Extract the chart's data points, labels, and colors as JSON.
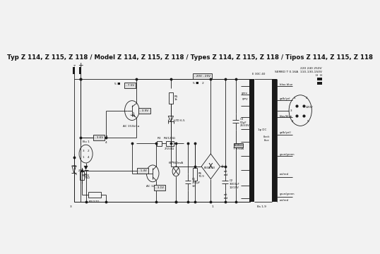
{
  "title_line": "Typ Z 114, Z 115, Z 118 / Model Z 114, Z 115, Z 118 / Types Z 114, Z 115, Z 118 / Tipos Z 114, Z 115, Z 118",
  "bg_color": "#f2f2f2",
  "line_color": "#1a1a1a",
  "text_color": "#111111",
  "title_fontsize": 6.2,
  "body_fontsize": 4.0,
  "small_fontsize": 3.2,
  "top_right_text1": "220 240 250V",
  "top_right_text2": "SEMKO T 0.16A  110-130-150V",
  "top_right_text3": "H  H",
  "voltage_box1": "- 20V - 25V",
  "voltage_box2": "- 7.5V",
  "voltage_box3": "- 3.6V",
  "voltage_box4": "- 1.4V",
  "voltage_box5": "- 3.6V",
  "label_r5": "R5\n1k",
  "label_r6": "R6\n70.9",
  "label_r3": "R3",
  "label_r4": "R4/120Ω",
  "label_r4b": "2/150Ω",
  "label_r1": "R1\n75Ω",
  "label_r2": "R2/27Ω",
  "label_zd": "ZD 6.5",
  "label_c1": "C1\n250µF\n3V",
  "label_c2": "C2\n3000µF\n12/15V",
  "label_c3": "C3\n50µF\n25/30V",
  "label_semko": "SEMKO\nT 0.63A",
  "label_b300": "B300C60",
  "label_lamp": "6V¶60mA",
  "label_ac153": "AC 153k/1a",
  "label_ac127": "AC 127",
  "label_zg1": "ZG1",
  "label_bu1": "Bu 1",
  "label_rd10": "RD10",
  "label_e30c40": "E 30C 40",
  "label_grou": "grou",
  "label_grey": "grey",
  "label_blau_blue": "blau blue",
  "label_gelb_yel": "gelb/yel",
  "label_blau_blue2": "blau/blue",
  "label_gelb_yell": "gelb/yell",
  "label_grun_green1": "grun/green",
  "label_rot_red1": "rot/red",
  "label_grun_green2": "grun/green",
  "label_rot_red2": "rot/red",
  "label_rot1": "rot",
  "label_red1": "red",
  "label_rot2": "rot",
  "label_red2": "red",
  "label_bs19": "Bs 1-9",
  "label_220v": "220V",
  "label_black": "black",
  "label_blue2": "blue",
  "label_1phi": "1φ DC",
  "label_node3": "3",
  "label_node1": "1",
  "label_node4": "4",
  "label_5v": "5 ■",
  "tr_pin1": "1",
  "tr_pin2": "2",
  "tr_pin3": "3",
  "tr_pin4": "4",
  "tr_pin5": "5",
  "tr_pin6": "6"
}
